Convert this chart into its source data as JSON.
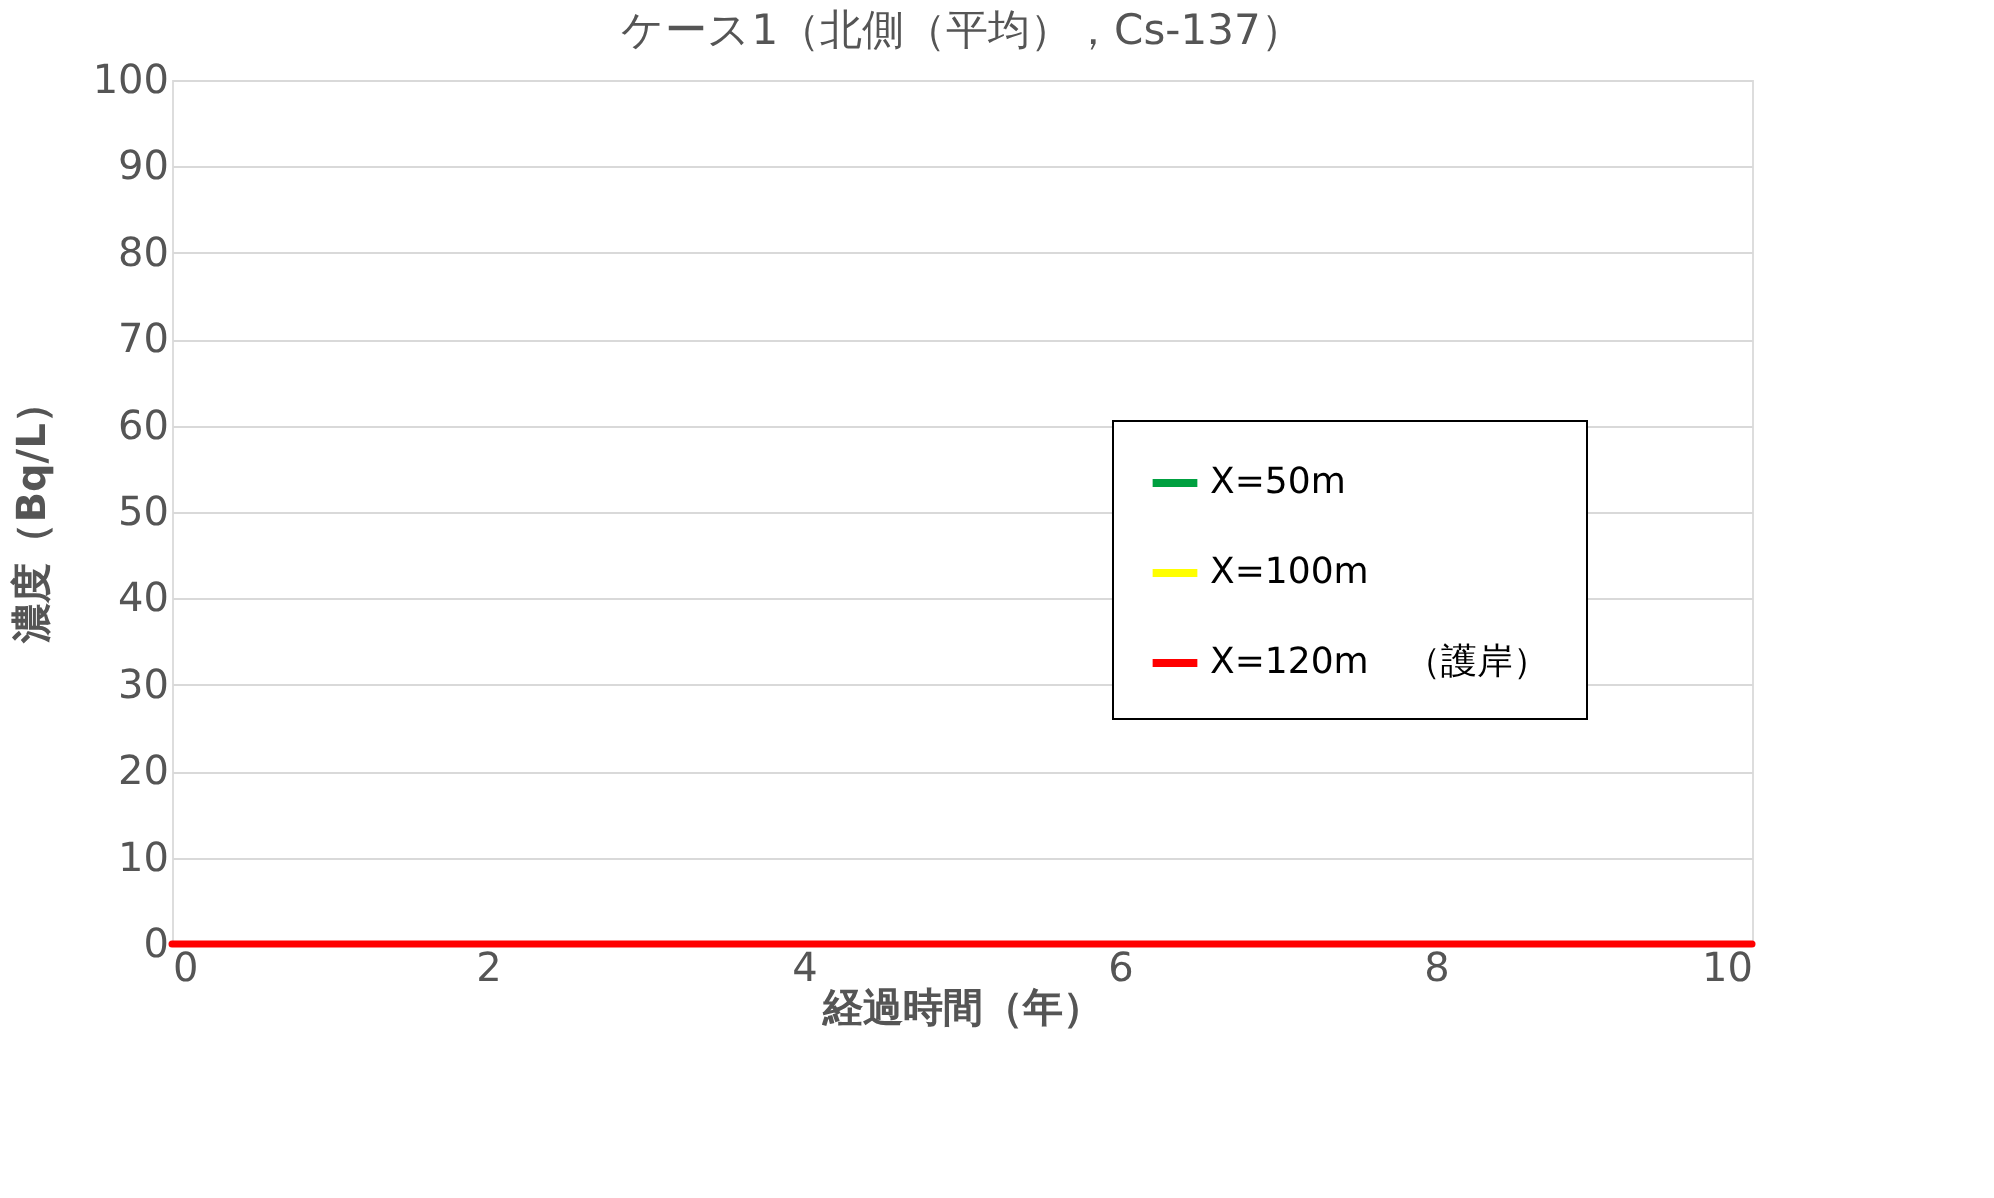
{
  "chart_data": {
    "type": "line",
    "title": "ケース1（北側（平均），Cs-137）",
    "xlabel": "経過時間（年）",
    "ylabel": "濃度（Bq/L）",
    "x": [
      0,
      10
    ],
    "series": [
      {
        "name": "X=50m",
        "color": "#00a040",
        "values": [
          null,
          null
        ]
      },
      {
        "name": "X=100m",
        "color": "#ffff00",
        "values": [
          null,
          null
        ]
      },
      {
        "name": "X=120m　（護岸）",
        "color": "#ff0000",
        "values": [
          0,
          0
        ]
      }
    ],
    "xlim": [
      0,
      10
    ],
    "xticks": [
      0,
      2,
      4,
      6,
      8,
      10
    ],
    "ylim": [
      0,
      100
    ],
    "yticks": [
      0,
      10,
      20,
      30,
      40,
      50,
      60,
      70,
      80,
      90,
      100
    ],
    "grid": "y",
    "legend": "right",
    "marker": "none",
    "line_style": "solid"
  }
}
